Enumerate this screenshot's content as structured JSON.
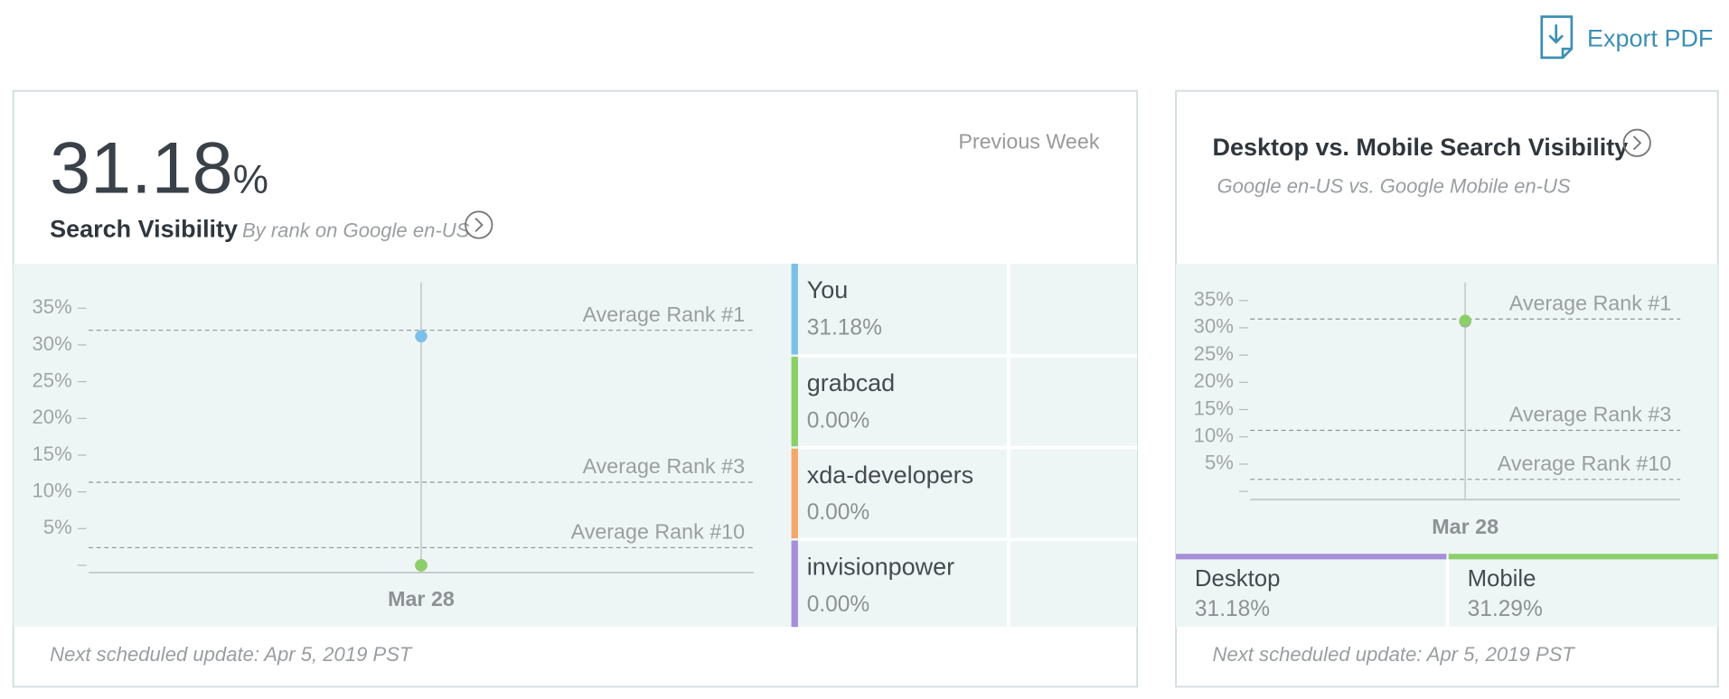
{
  "header": {
    "export_label": "Export PDF"
  },
  "panels": [
    {
      "big_value": "31.18",
      "big_unit": "%",
      "title": "Search Visibility",
      "subtitle": "By rank on Google en-US",
      "period": "Previous Week",
      "footer": "Next scheduled update: Apr 5, 2019 PST"
    },
    {
      "title": "Desktop vs. Mobile Search Visibility",
      "subtitle": "Google en-US vs. Google Mobile en-US",
      "footer": "Next scheduled update: Apr 5, 2019 PST"
    }
  ],
  "chart_data": [
    {
      "type": "line",
      "categories": [
        "Mar 28"
      ],
      "series": [
        {
          "name": "You",
          "color": "#7cc0e8",
          "values": [
            31.18
          ],
          "value_labels": [
            "31.18%"
          ]
        },
        {
          "name": "grabcad",
          "color": "#8ccf6a",
          "values": [
            0
          ],
          "value_labels": [
            "0.00%"
          ]
        },
        {
          "name": "xda-developers",
          "color": "#f2a86b",
          "values": [
            0
          ],
          "value_labels": [
            "0.00%"
          ]
        },
        {
          "name": "invisionpower",
          "color": "#a68fd9",
          "values": [
            0
          ],
          "value_labels": [
            "0.00%"
          ]
        }
      ],
      "ylim": [
        -1,
        38.5
      ],
      "yticks": [
        {
          "value": 5,
          "label": "5%"
        },
        {
          "value": 10,
          "label": "10%"
        },
        {
          "value": 15,
          "label": "15%"
        },
        {
          "value": 20,
          "label": "20%"
        },
        {
          "value": 25,
          "label": "25%"
        },
        {
          "value": 30,
          "label": "30%"
        },
        {
          "value": 35,
          "label": "35%"
        }
      ],
      "ref_lines": [
        {
          "label": "Average Rank #1",
          "value": 32
        },
        {
          "label": "Average Rank #3",
          "value": 11.3
        },
        {
          "label": "Average Rank #10",
          "value": 2.4
        }
      ]
    },
    {
      "type": "line",
      "categories": [
        "Mar 28"
      ],
      "series": [
        {
          "name": "Mobile",
          "color": "#8ccf6a",
          "values": [
            31.29
          ],
          "value_labels": [
            "31.29%"
          ]
        },
        {
          "name": "Desktop",
          "color": "#a68fd9",
          "values": [
            31.18
          ],
          "value_labels": [
            "31.18%"
          ]
        }
      ],
      "ylim": [
        -1.5,
        38.3
      ],
      "yticks": [
        {
          "value": 5,
          "label": "5%"
        },
        {
          "value": 10,
          "label": "10%"
        },
        {
          "value": 15,
          "label": "15%"
        },
        {
          "value": 20,
          "label": "20%"
        },
        {
          "value": 25,
          "label": "25%"
        },
        {
          "value": 30,
          "label": "30%"
        },
        {
          "value": 35,
          "label": "35%"
        }
      ],
      "ref_lines": [
        {
          "label": "Average Rank #1",
          "value": 31.6
        },
        {
          "label": "Average Rank #3",
          "value": 11.2
        },
        {
          "label": "Average Rank #10",
          "value": 2.2
        }
      ]
    }
  ]
}
